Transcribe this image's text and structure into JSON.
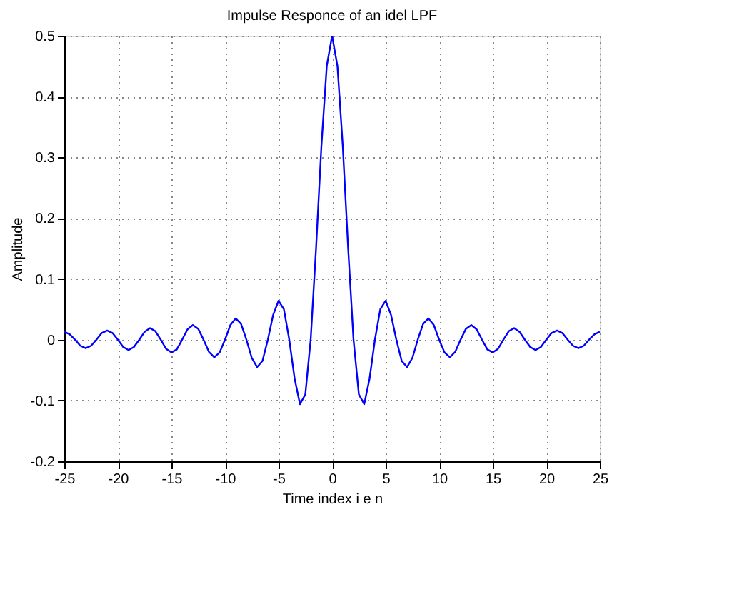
{
  "chart_data": {
    "type": "line",
    "title": "Impulse Responce of an idel LPF",
    "xlabel": "Time index i e n",
    "ylabel": "Amplitude",
    "x": [
      -25,
      -24.5,
      -24,
      -23.5,
      -23,
      -22.5,
      -22,
      -21.5,
      -21,
      -20.5,
      -20,
      -19.5,
      -19,
      -18.5,
      -18,
      -17.5,
      -17,
      -16.5,
      -16,
      -15.5,
      -15,
      -14.5,
      -14,
      -13.5,
      -13,
      -12.5,
      -12,
      -11.5,
      -11,
      -10.5,
      -10,
      -9.5,
      -9,
      -8.5,
      -8,
      -7.5,
      -7,
      -6.5,
      -6,
      -5.5,
      -5,
      -4.5,
      -4,
      -3.5,
      -3,
      -2.5,
      -2,
      -1.5,
      -1,
      -0.5,
      0,
      0.5,
      1,
      1.5,
      2,
      2.5,
      3,
      3.5,
      4,
      4.5,
      5,
      5.5,
      6,
      6.5,
      7,
      7.5,
      8,
      8.5,
      9,
      9.5,
      10,
      10.5,
      11,
      11.5,
      12,
      12.5,
      13,
      13.5,
      14,
      14.5,
      15,
      15.5,
      16,
      16.5,
      17,
      17.5,
      18,
      18.5,
      19,
      19.5,
      20,
      20.5,
      21,
      21.5,
      22,
      22.5,
      23,
      23.5,
      24,
      24.5,
      25
    ],
    "series": [
      {
        "color": "#0000ff",
        "values": [
          0.013,
          0.009,
          0,
          -0.01,
          -0.014,
          -0.01,
          0,
          0.011,
          0.015,
          0.011,
          0,
          -0.012,
          -0.017,
          -0.012,
          0,
          0.013,
          0.019,
          0.014,
          0,
          -0.015,
          -0.021,
          -0.016,
          0,
          0.017,
          0.024,
          0.018,
          0,
          -0.02,
          -0.029,
          -0.021,
          0,
          0.024,
          0.035,
          0.026,
          0,
          -0.03,
          -0.045,
          -0.035,
          0,
          0.041,
          0.064,
          0.05,
          0,
          -0.064,
          -0.106,
          -0.09,
          0,
          0.15,
          0.318,
          0.45,
          0.5,
          0.45,
          0.318,
          0.15,
          0,
          -0.09,
          -0.106,
          -0.064,
          0,
          0.05,
          0.064,
          0.041,
          0,
          -0.035,
          -0.045,
          -0.03,
          0,
          0.026,
          0.035,
          0.024,
          0,
          -0.021,
          -0.029,
          -0.02,
          0,
          0.018,
          0.024,
          0.017,
          0,
          -0.016,
          -0.021,
          -0.015,
          0,
          0.014,
          0.019,
          0.013,
          0,
          -0.012,
          -0.017,
          -0.012,
          0,
          0.011,
          0.015,
          0.011,
          0,
          -0.01,
          -0.014,
          -0.01,
          0,
          0.009,
          0.013
        ]
      }
    ],
    "xlim": [
      -25,
      25
    ],
    "xticks": [
      -25,
      -20,
      -15,
      -10,
      -5,
      0,
      5,
      10,
      15,
      20,
      25
    ],
    "ylim": [
      -0.2,
      0.5
    ],
    "yticks": [
      -0.2,
      -0.1,
      0,
      0.1,
      0.2,
      0.3,
      0.4,
      0.5
    ],
    "grid": true,
    "line_style": "solid",
    "marker": "none"
  }
}
